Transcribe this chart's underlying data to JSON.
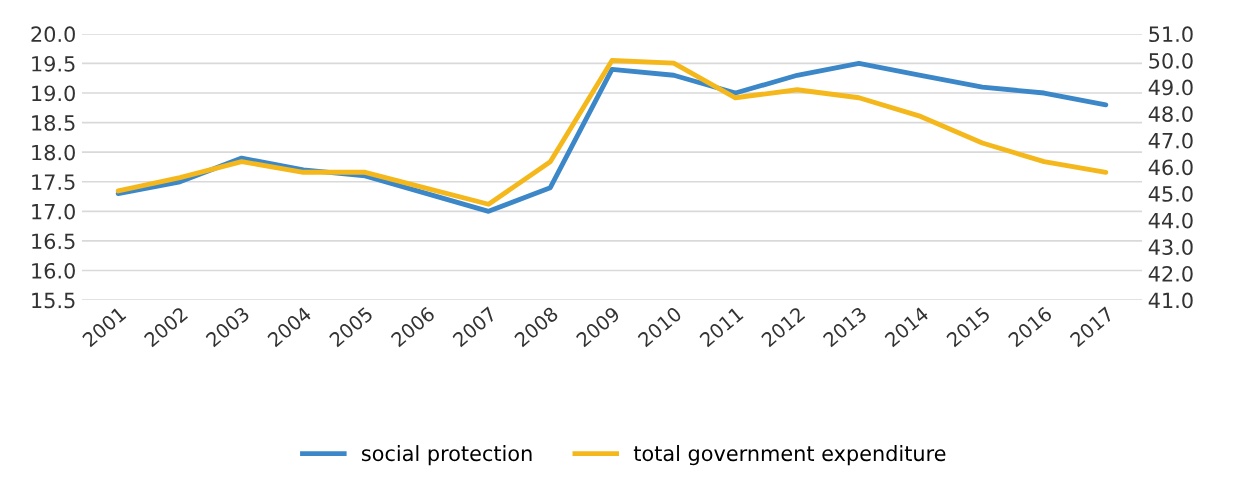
{
  "chart_data": {
    "type": "line",
    "categories": [
      "2001",
      "2002",
      "2003",
      "2004",
      "2005",
      "2006",
      "2007",
      "2008",
      "2009",
      "2010",
      "2011",
      "2012",
      "2013",
      "2014",
      "2015",
      "2016",
      "2017"
    ],
    "series": [
      {
        "name": "social protection",
        "color": "#3c87c8",
        "values": [
          17.3,
          17.5,
          17.9,
          17.7,
          17.6,
          17.3,
          17.0,
          17.4,
          19.4,
          19.3,
          19.0,
          19.3,
          19.5,
          19.3,
          19.1,
          19.0,
          18.8
        ]
      },
      {
        "name": "total government expenditure",
        "color": "#f5b81c",
        "axis": "y2",
        "values": [
          45.1,
          45.6,
          46.2,
          45.8,
          45.8,
          45.2,
          44.6,
          46.2,
          50.0,
          49.9,
          48.6,
          48.9,
          48.6,
          47.9,
          46.9,
          46.2,
          45.8
        ]
      }
    ],
    "ylim": [
      15.5,
      20.0
    ],
    "yticks": [
      {
        "value": 15.5,
        "label": "15.5"
      },
      {
        "value": 16.0,
        "label": "16.0"
      },
      {
        "value": 16.5,
        "label": "16.5"
      },
      {
        "value": 17.0,
        "label": "17.0"
      },
      {
        "value": 17.5,
        "label": "17.5"
      },
      {
        "value": 18.0,
        "label": "18.0"
      },
      {
        "value": 18.5,
        "label": "18.5"
      },
      {
        "value": 19.0,
        "label": "19.0"
      },
      {
        "value": 19.5,
        "label": "19.5"
      },
      {
        "value": 20.0,
        "label": "20.0"
      }
    ],
    "y2lim": [
      41,
      51
    ],
    "y2ticks": [
      {
        "value": 41,
        "label": "41.0"
      },
      {
        "value": 42,
        "label": "42.0"
      },
      {
        "value": 43,
        "label": "43.0"
      },
      {
        "value": 44,
        "label": "44.0"
      },
      {
        "value": 45,
        "label": "45.0"
      },
      {
        "value": 46,
        "label": "46.0"
      },
      {
        "value": 47,
        "label": "47.0"
      },
      {
        "value": 48,
        "label": "48.0"
      },
      {
        "value": 49,
        "label": "49.0"
      },
      {
        "value": 50,
        "label": "50.0"
      },
      {
        "value": 51,
        "label": "51.0"
      }
    ],
    "grid": "y",
    "legend": "bottom",
    "marker": "none",
    "line_style": "solid"
  }
}
